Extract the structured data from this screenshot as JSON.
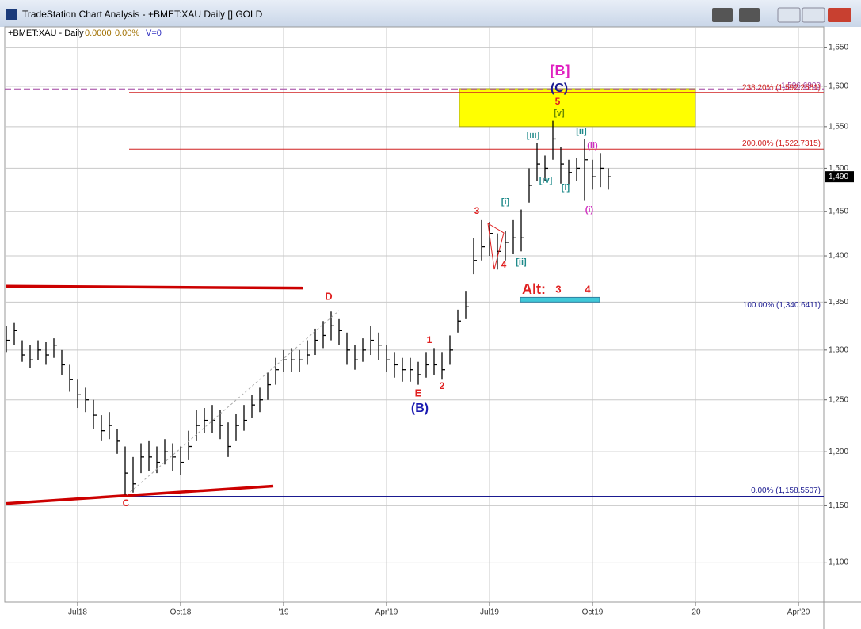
{
  "window": {
    "title": "TradeStation Chart Analysis - +BMET:XAU Daily [] GOLD"
  },
  "chart_data": {
    "type": "ohlc",
    "symbol_label": "+BMET:XAU - Daily",
    "last_change": "0.0000",
    "last_change_pct": "0.00%",
    "volume_label": "V=0",
    "log_scale": true,
    "grid": true,
    "categories": [
      null,
      null,
      null,
      null,
      null,
      null,
      null,
      null,
      null,
      "Jul18",
      null,
      null,
      null,
      null,
      null,
      null,
      null,
      null,
      null,
      null,
      null,
      null,
      "Oct18",
      null,
      null,
      null,
      null,
      null,
      null,
      null,
      null,
      null,
      null,
      null,
      null,
      "'19",
      null,
      null,
      null,
      null,
      null,
      null,
      null,
      null,
      null,
      null,
      null,
      null,
      "Apr'19",
      null,
      null,
      null,
      null,
      null,
      null,
      null,
      null,
      null,
      null,
      null,
      null,
      "Jul19",
      null,
      null,
      null,
      null,
      null,
      null,
      null,
      null,
      null,
      null,
      null,
      null,
      "Oct19",
      null,
      null,
      null,
      null,
      null,
      null,
      null,
      null,
      null,
      null,
      null,
      null,
      "'20",
      null,
      null,
      null,
      null,
      null,
      null,
      null,
      null,
      null,
      null,
      null,
      null,
      "Apr'20",
      null,
      null,
      null
    ],
    "series": [
      {
        "name": "High",
        "color": "#000000",
        "values": [
          1325,
          1328,
          1310,
          1305,
          1310,
          1308,
          1312,
          1300,
          1285,
          1270,
          1262,
          1250,
          1235,
          1238,
          1222,
          1205,
          1195,
          1208,
          1210,
          1205,
          1212,
          1208,
          1205,
          1220,
          1240,
          1242,
          1245,
          1240,
          1228,
          1236,
          1245,
          1255,
          1262,
          1278,
          1292,
          1300,
          1302,
          1300,
          1310,
          1322,
          1330,
          1340,
          1332,
          1318,
          1305,
          1312,
          1325,
          1318,
          1305,
          1298,
          1292,
          1292,
          1288,
          1298,
          1302,
          1298,
          1315,
          1342,
          1362,
          1420,
          1440,
          1438,
          1425,
          1428,
          1440,
          1452,
          1500,
          1530,
          1515,
          1557,
          1525,
          1510,
          1512,
          1535,
          1510,
          1518,
          1500,
          null,
          null,
          null,
          null,
          null,
          null,
          null,
          null,
          null,
          null,
          null,
          null,
          null,
          null,
          null,
          null,
          null,
          null,
          null,
          null,
          null,
          null,
          null,
          null,
          null,
          null,
          null
        ]
      },
      {
        "name": "Low",
        "color": "#000000",
        "values": [
          1298,
          1305,
          1288,
          1282,
          1290,
          1285,
          1292,
          1275,
          1258,
          1242,
          1238,
          1222,
          1210,
          1212,
          1198,
          1160,
          1162,
          1180,
          1182,
          1180,
          1188,
          1182,
          1178,
          1192,
          1210,
          1218,
          1218,
          1212,
          1195,
          1210,
          1220,
          1232,
          1238,
          1250,
          1265,
          1278,
          1278,
          1278,
          1285,
          1295,
          1302,
          1310,
          1305,
          1285,
          1280,
          1288,
          1295,
          1290,
          1278,
          1272,
          1268,
          1268,
          1265,
          1272,
          1275,
          1270,
          1285,
          1318,
          1332,
          1380,
          1395,
          1400,
          1385,
          1395,
          1402,
          1405,
          1460,
          1485,
          1485,
          1510,
          1482,
          1480,
          1485,
          1462,
          1475,
          1478,
          1475,
          null,
          null,
          null,
          null,
          null,
          null,
          null,
          null,
          null,
          null,
          null,
          null,
          null,
          null,
          null,
          null,
          null,
          null,
          null,
          null,
          null,
          null,
          null,
          null,
          null,
          null,
          null
        ]
      },
      {
        "name": "Close",
        "color": "#000000",
        "values": [
          1310,
          1320,
          1295,
          1290,
          1300,
          1295,
          1305,
          1285,
          1270,
          1255,
          1250,
          1235,
          1220,
          1225,
          1210,
          1180,
          1170,
          1195,
          1195,
          1190,
          1200,
          1195,
          1190,
          1205,
          1225,
          1230,
          1230,
          1225,
          1205,
          1225,
          1230,
          1245,
          1250,
          1265,
          1280,
          1290,
          1290,
          1290,
          1295,
          1310,
          1315,
          1325,
          1320,
          1300,
          1290,
          1300,
          1310,
          1305,
          1290,
          1285,
          1280,
          1280,
          1275,
          1285,
          1285,
          1280,
          1300,
          1330,
          1345,
          1395,
          1410,
          1425,
          1405,
          1415,
          1420,
          1420,
          1480,
          1505,
          1500,
          1535,
          1505,
          1495,
          1500,
          1510,
          1490,
          1500,
          1490,
          null,
          null,
          null,
          null,
          null,
          null,
          null,
          null,
          null,
          null,
          null,
          null,
          null,
          null,
          null,
          null,
          null,
          null,
          null,
          null,
          null,
          null,
          null,
          null,
          null,
          null,
          null
        ]
      }
    ],
    "ylim": [
      1066,
      1662
    ],
    "yticks": [
      {
        "value": 1100,
        "label": "1,100"
      },
      {
        "value": 1150,
        "label": "1,150"
      },
      {
        "value": 1200,
        "label": "1,200"
      },
      {
        "value": 1250,
        "label": "1,250"
      },
      {
        "value": 1300,
        "label": "1,300"
      },
      {
        "value": 1350,
        "label": "1,350"
      },
      {
        "value": 1400,
        "label": "1,400"
      },
      {
        "value": 1450,
        "label": "1,450"
      },
      {
        "value": 1500,
        "label": "1,500"
      },
      {
        "value": 1550,
        "label": "1,550"
      },
      {
        "value": 1600,
        "label": "1,600"
      },
      {
        "value": 1650,
        "label": "1,650"
      }
    ],
    "last_price": {
      "value": 1490,
      "label": "1,490"
    },
    "fib_levels": [
      {
        "value": 1596.68,
        "label": "1,596.6800",
        "color": "#a040a0"
      },
      {
        "value": 1592.2561,
        "label": "238.20% (1,592.2561)",
        "color": "#d02020"
      },
      {
        "value": 1522.7315,
        "label": "200.00% (1,522.7315)",
        "color": "#d02020"
      },
      {
        "value": 1340.6411,
        "label": "100.00% (1,340.6411)",
        "color": "#1a1a90"
      },
      {
        "value": 1158.5507,
        "label": "0.00% (1,158.5507)",
        "color": "#1a1a90"
      }
    ],
    "zones": [
      {
        "low": 1550,
        "high": 1597,
        "color": "#ffff00"
      },
      {
        "low": 1350,
        "high": 1355,
        "color": "#40c8d8"
      }
    ],
    "trendlines": [
      {
        "from": 1367,
        "to": 1365,
        "color": "#cc0000"
      },
      {
        "from": 1152,
        "to": 1168,
        "color": "#cc0000"
      }
    ],
    "annotations": [
      {
        "text": "[B]",
        "color": "#e020c0"
      },
      {
        "text": "(C)",
        "color": "#1a1a90"
      },
      {
        "text": "5",
        "color": "#e02020"
      },
      {
        "text": "[v]",
        "color": "#6a8a00"
      },
      {
        "text": "[iii]",
        "color": "#1f8a8a"
      },
      {
        "text": "[iv]",
        "color": "#1f8a8a"
      },
      {
        "text": "[ii]",
        "color": "#1f8a8a"
      },
      {
        "text": "[i]",
        "color": "#1f8a8a"
      },
      {
        "text": "(ii)",
        "color": "#d030c0"
      },
      {
        "text": "(i)",
        "color": "#d030c0"
      },
      {
        "text": "[i]",
        "color": "#1f8a8a"
      },
      {
        "text": "[ii]",
        "color": "#1f8a8a"
      },
      {
        "text": "3",
        "color": "#e02020"
      },
      {
        "text": "4",
        "color": "#e02020"
      },
      {
        "text": "Alt:",
        "color": "#e02020"
      },
      {
        "text": "3",
        "color": "#e02020"
      },
      {
        "text": "4",
        "color": "#e02020"
      },
      {
        "text": "D",
        "color": "#e02020"
      },
      {
        "text": "1",
        "color": "#e02020"
      },
      {
        "text": "2",
        "color": "#e02020"
      },
      {
        "text": "E",
        "color": "#e02020"
      },
      {
        "text": "(B)",
        "color": "#1a1ab0"
      },
      {
        "text": "C",
        "color": "#e02020"
      }
    ]
  }
}
